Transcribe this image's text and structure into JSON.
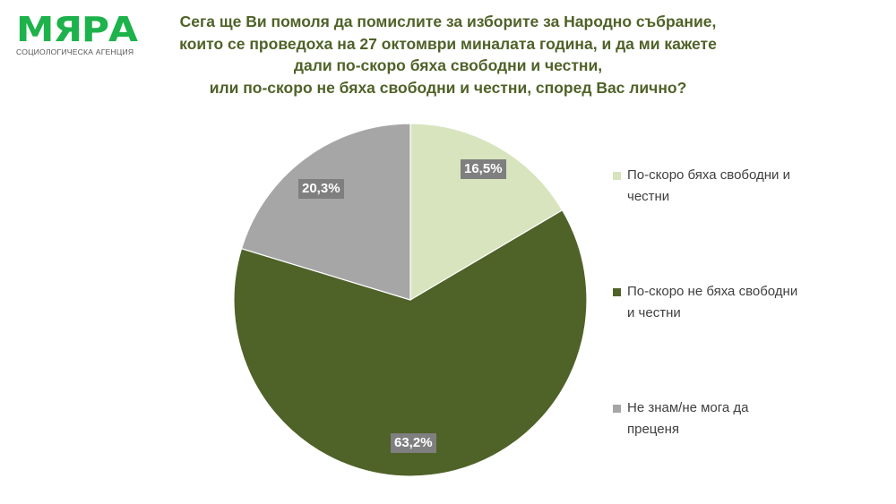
{
  "logo": {
    "name": "МЯРА",
    "subtitle": "СОЦИОЛОГИЧЕСКА АГЕНЦИЯ",
    "color": "#1db24b"
  },
  "title_lines": [
    "Сега ще Ви помоля да помислите за изборите за Народно събрание,",
    "които се проведоха на 27 октомври миналата година, и да ми кажете",
    "дали по-скоро бяха свободни и честни,",
    "или по-скоро не бяха свободни и честни, според Вас лично?"
  ],
  "labels": [
    "16,5%",
    "63,2%",
    "20,3%"
  ],
  "legend": [
    {
      "label": "По-скоро бяха свободни и честни",
      "line1": "По-скоро бяха свободни и",
      "line2": "честни",
      "color": "#d7e4bd"
    },
    {
      "label": "По-скоро не бяха свободни и честни",
      "line1": "По-скоро не бяха свободни",
      "line2": "и честни",
      "color": "#4f6228"
    },
    {
      "label": "Не знам/не мога да преценя",
      "line1": "Не знам/не мога да",
      "line2": "преценя",
      "color": "#a6a6a6"
    }
  ],
  "chart_data": {
    "type": "pie",
    "title": "Сега ще Ви помоля да помислите за изборите за Народно събрание, които се проведоха на 27 октомври миналата година, и да ми кажете дали по-скоро бяха свободни и честни, или по-скоро не бяха свободни и честни, според Вас лично?",
    "categories": [
      "По-скоро бяха свободни и честни",
      "По-скоро не бяха свободни и честни",
      "Не знам/не мога да преценя"
    ],
    "values": [
      16.5,
      63.2,
      20.3
    ],
    "unit": "%",
    "colors": [
      "#d7e4bd",
      "#4f6228",
      "#a6a6a6"
    ],
    "start_angle": "12 o'clock, clockwise",
    "legend_position": "right"
  }
}
